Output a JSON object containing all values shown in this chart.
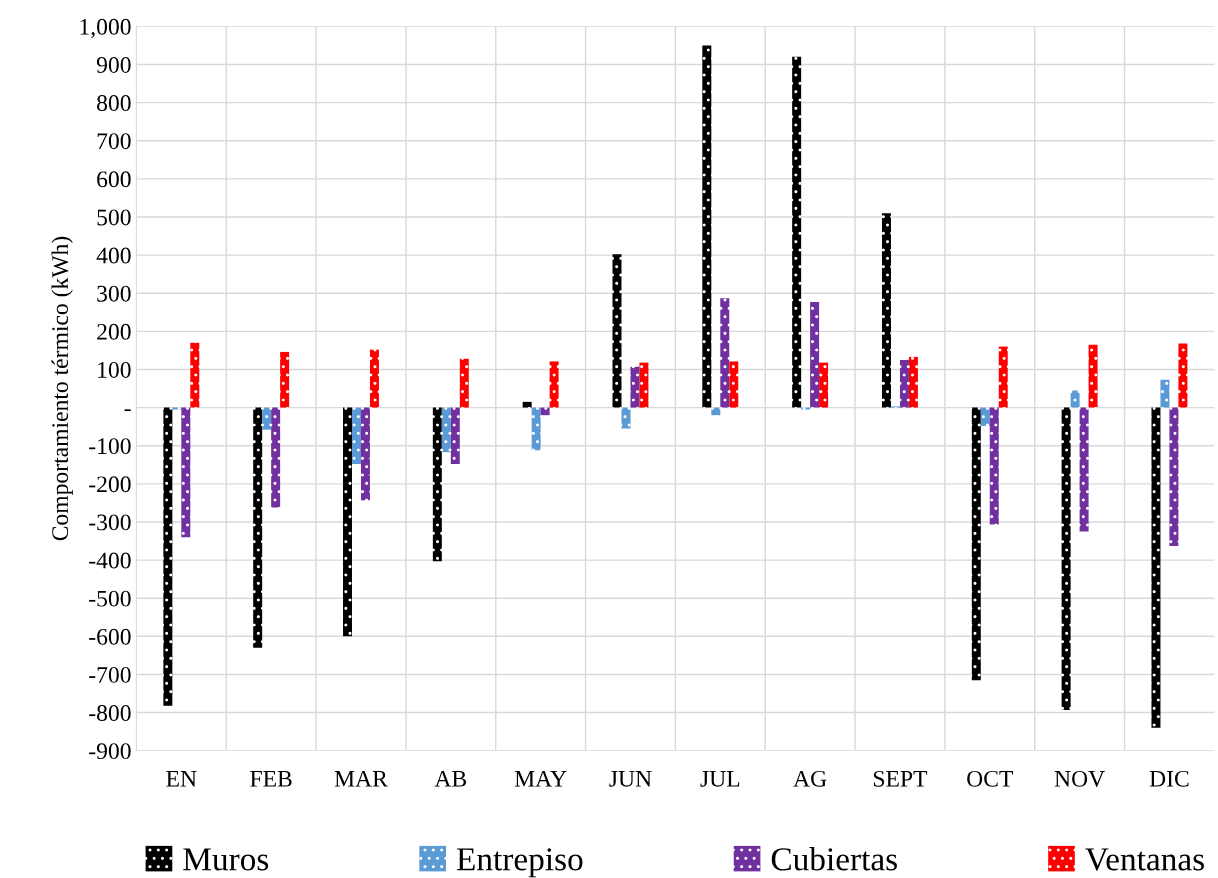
{
  "chart_data": {
    "type": "bar",
    "ylabel": "Comportamiento térmico (kWh)",
    "categories": [
      "EN",
      "FEB",
      "MAR",
      "AB",
      "MAY",
      "JUN",
      "JUL",
      "AG",
      "SEPT",
      "OCT",
      "NOV",
      "DIC"
    ],
    "series": [
      {
        "name": "Muros",
        "color": "#000000",
        "values": [
          -782,
          -630,
          -600,
          -403,
          15,
          402,
          950,
          920,
          510,
          -715,
          -793,
          -840
        ]
      },
      {
        "name": "Entrepiso",
        "color": "#5b9bd5",
        "values": [
          -5,
          -58,
          -148,
          -117,
          -112,
          -55,
          -20,
          -5,
          3,
          -48,
          45,
          73
        ]
      },
      {
        "name": "Cubiertas",
        "color": "#7030a0",
        "values": [
          -340,
          -262,
          -243,
          -148,
          -20,
          107,
          287,
          277,
          125,
          -307,
          -325,
          -363
        ]
      },
      {
        "name": "Ventanas",
        "color": "#ff0000",
        "values": [
          170,
          146,
          152,
          128,
          121,
          118,
          121,
          118,
          133,
          160,
          165,
          168
        ]
      }
    ],
    "ylim": [
      -900,
      1000
    ],
    "yticks": [
      -900,
      -800,
      -700,
      -600,
      -500,
      -400,
      -300,
      -200,
      -100,
      {
        "value": 0,
        "label": "-"
      },
      100,
      200,
      300,
      400,
      500,
      600,
      700,
      800,
      900,
      {
        "value": 1000,
        "label": "1,000"
      }
    ],
    "grid": true,
    "legend": "bottom"
  }
}
